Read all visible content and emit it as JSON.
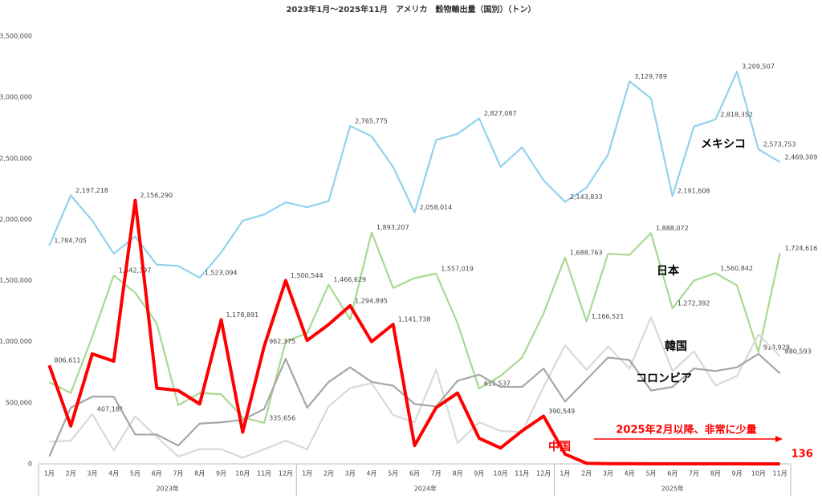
{
  "chart_data": {
    "type": "line",
    "title": "2023年1月～2025年11月　アメリカ　穀物輸出量（国別）（トン）",
    "categories": [
      "1月",
      "2月",
      "3月",
      "4月",
      "5月",
      "6月",
      "7月",
      "8月",
      "9月",
      "10月",
      "11月",
      "12月",
      "1月",
      "2月",
      "3月",
      "4月",
      "5月",
      "6月",
      "7月",
      "8月",
      "9月",
      "10月",
      "11月",
      "12月",
      "1月",
      "2月",
      "3月",
      "4月",
      "5月",
      "6月",
      "7月",
      "8月",
      "9月",
      "10月",
      "11月"
    ],
    "year_labels": [
      "2023年",
      "2024年",
      "2025年"
    ],
    "ylim": [
      0,
      3500000
    ],
    "yticks": [
      0,
      {
        "value": 500000,
        "label": "500,000"
      },
      {
        "value": 1000000,
        "label": "1,000,000"
      },
      {
        "value": 1500000,
        "label": "1,500,000"
      },
      {
        "value": 2000000,
        "label": "2,000,000"
      },
      {
        "value": 2500000,
        "label": "2,500,000"
      },
      {
        "value": 3000000,
        "label": "3,000,000"
      },
      {
        "value": 3500000,
        "label": "3,500,000"
      }
    ],
    "grid": false,
    "series": [
      {
        "name": "メキシコ",
        "color": "#92d2ee",
        "values": [
          1784705,
          2197218,
          1990000,
          1720000,
          1860000,
          1630000,
          1620000,
          1523094,
          1730000,
          1990000,
          2040000,
          2140000,
          2100000,
          2150000,
          2765775,
          2680000,
          2430000,
          2058014,
          2650000,
          2700000,
          2827087,
          2430000,
          2590000,
          2320000,
          2143833,
          2260000,
          2530000,
          3129789,
          2990000,
          2191608,
          2760000,
          2818352,
          3209507,
          2573753,
          2469309
        ],
        "value_labels": [
          "1,784,705",
          "2,197,218",
          null,
          null,
          null,
          null,
          null,
          "1,523,094",
          null,
          null,
          null,
          null,
          null,
          null,
          "2,765,775",
          null,
          null,
          "2,058,014",
          null,
          null,
          "2,827,087",
          null,
          null,
          null,
          "2,143,833",
          null,
          null,
          "3,129,789",
          null,
          "2,191,608",
          null,
          "2,818,352",
          "3,209,507",
          "2,573,753",
          "2,469,309"
        ]
      },
      {
        "name": "日本",
        "color": "#a9d98f",
        "values": [
          670000,
          580000,
          1040000,
          1542397,
          1400000,
          1150000,
          480000,
          580000,
          570000,
          380000,
          335656,
          1000000,
          1070000,
          1466629,
          1180000,
          1893207,
          1440000,
          1520000,
          1557019,
          1150000,
          616537,
          720000,
          870000,
          1230000,
          1688763,
          1166521,
          1720000,
          1710000,
          1888072,
          1272392,
          1500000,
          1560842,
          1460000,
          913929,
          1724616
        ],
        "value_labels": [
          null,
          null,
          null,
          "1,542,397",
          null,
          null,
          null,
          null,
          null,
          null,
          "335,656",
          null,
          null,
          "1,466,629",
          null,
          "1,893,207",
          null,
          null,
          "1,557,019",
          null,
          "616,537",
          null,
          null,
          null,
          "1,688,763",
          "1,166,521",
          null,
          null,
          "1,888,072",
          "1,272,392",
          null,
          "1,560,842",
          null,
          "913,929",
          "1,724,616"
        ]
      },
      {
        "name": "韓国",
        "color": "#d9d9d9",
        "values": [
          180000,
          190000,
          407181,
          110000,
          390000,
          220000,
          60000,
          120000,
          120000,
          50000,
          120000,
          190000,
          120000,
          470000,
          620000,
          660000,
          400000,
          340000,
          770000,
          170000,
          340000,
          270000,
          260000,
          630000,
          970000,
          770000,
          960000,
          780000,
          1200000,
          760000,
          920000,
          640000,
          720000,
          1060000,
          880593
        ],
        "value_labels": [
          null,
          null,
          "407,181",
          null,
          null,
          null,
          null,
          null,
          null,
          null,
          null,
          null,
          null,
          null,
          null,
          null,
          null,
          null,
          null,
          null,
          null,
          null,
          null,
          null,
          null,
          null,
          null,
          null,
          null,
          null,
          null,
          null,
          null,
          null,
          "880,593"
        ]
      },
      {
        "name": "コロンビア",
        "color": "#a6a6a6",
        "values": [
          60000,
          460000,
          550000,
          550000,
          240000,
          240000,
          150000,
          330000,
          340000,
          360000,
          450000,
          860000,
          460000,
          670000,
          790000,
          670000,
          640000,
          490000,
          470000,
          680000,
          730000,
          630000,
          630000,
          780000,
          510000,
          690000,
          870000,
          850000,
          600000,
          630000,
          780000,
          760000,
          790000,
          900000,
          740000
        ]
      },
      {
        "name": "中国",
        "color": "#ff0000",
        "values": [
          806611,
          310000,
          900000,
          840000,
          2156290,
          620000,
          600000,
          490000,
          1178891,
          260000,
          962375,
          1500544,
          1010000,
          1140000,
          1294895,
          1000000,
          1141738,
          150000,
          460000,
          580000,
          210000,
          130000,
          270000,
          390549,
          80000,
          5000,
          2000,
          1500,
          1200,
          1000,
          900,
          700,
          500,
          300,
          136
        ],
        "value_labels": [
          "806,611",
          null,
          null,
          null,
          "2,156,290",
          null,
          null,
          null,
          "1,178,891",
          null,
          "962,375",
          "1,500,544",
          null,
          null,
          "1,294,895",
          null,
          "1,141,738",
          null,
          null,
          null,
          null,
          null,
          null,
          "390,549",
          null,
          null,
          null,
          null,
          null,
          null,
          null,
          null,
          null,
          null,
          "136"
        ]
      }
    ],
    "annotation": "2025年2月以降、非常に少量"
  }
}
